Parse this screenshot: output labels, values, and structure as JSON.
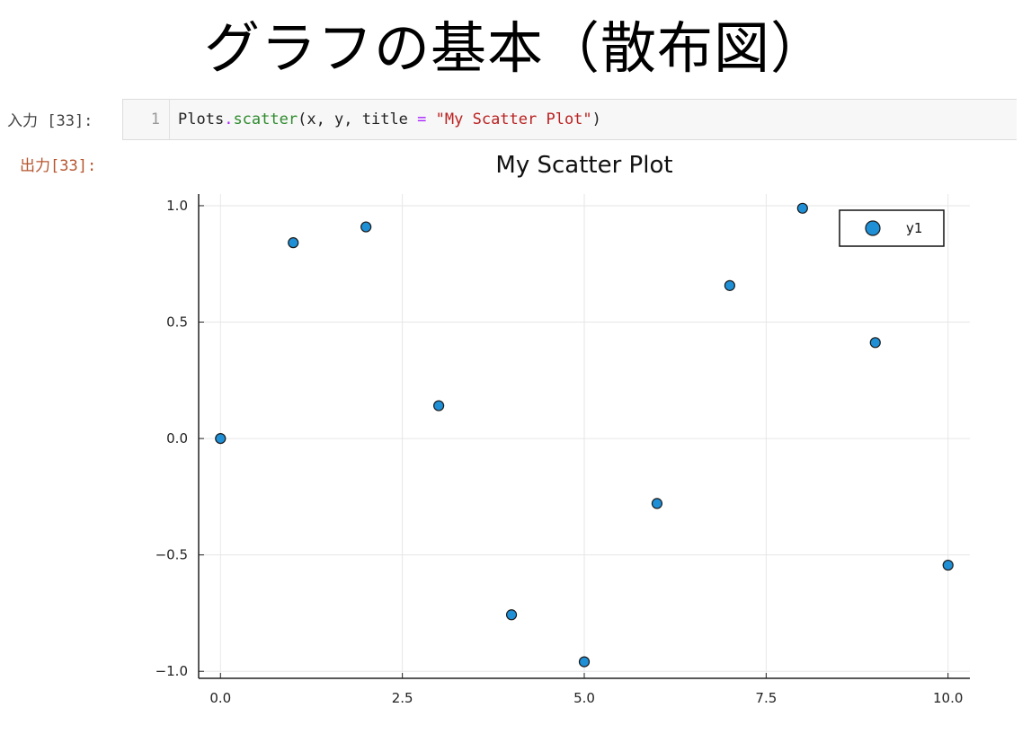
{
  "slide": {
    "title": "グラフの基本（散布図）"
  },
  "notebook": {
    "input_prompt": "入力 [33]:",
    "output_prompt": "出力[33]:",
    "cell": {
      "line_number": "1",
      "code_prefix": "Plots",
      "code_dot": ".",
      "code_fn": "scatter",
      "code_args": "(x, y, title ",
      "code_eq": "=",
      "code_space": " ",
      "code_str": "\"My Scatter Plot\"",
      "code_close": ")"
    }
  },
  "chart_data": {
    "type": "scatter",
    "title": "My Scatter Plot",
    "xlabel": "",
    "ylabel": "",
    "xlim": [
      -0.3,
      10.3
    ],
    "ylim": [
      -1.03,
      1.05
    ],
    "xticks": [
      0.0,
      2.5,
      5.0,
      7.5,
      10.0
    ],
    "xtick_labels": [
      "0.0",
      "2.5",
      "5.0",
      "7.5",
      "10.0"
    ],
    "yticks": [
      -1.0,
      -0.5,
      0.0,
      0.5,
      1.0
    ],
    "ytick_labels": [
      "−1.0",
      "−0.5",
      "0.0",
      "0.5",
      "1.0"
    ],
    "grid": true,
    "legend_position": "top-right",
    "series": [
      {
        "name": "y1",
        "color": "#1f8fd6",
        "x": [
          0,
          1,
          2,
          3,
          4,
          5,
          6,
          7,
          8,
          9,
          10
        ],
        "y": [
          0.0,
          0.841,
          0.909,
          0.141,
          -0.757,
          -0.959,
          -0.279,
          0.657,
          0.989,
          0.412,
          -0.544
        ]
      }
    ]
  }
}
